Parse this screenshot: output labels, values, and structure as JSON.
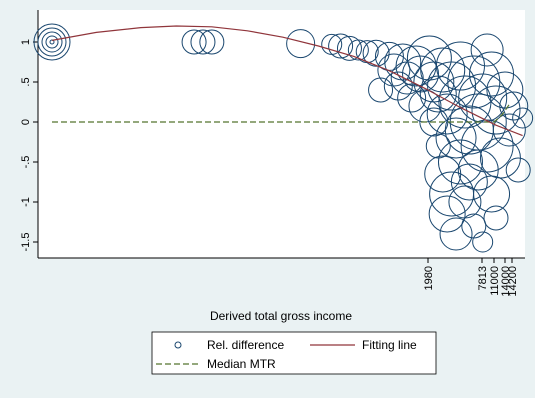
{
  "chart_data": {
    "type": "scatter",
    "xlabel": "Derived total gross income",
    "ylabel": "",
    "x_ticks": [
      "1980",
      "7813",
      "11000",
      "14000",
      "14200"
    ],
    "y_ticks": [
      "-1.5",
      "-1",
      "-.5",
      "0",
      ".5",
      "1"
    ],
    "y_tick_values": [
      -1.5,
      -1,
      -0.5,
      0,
      0.5,
      1
    ],
    "ylim": [
      -1.7,
      1.3
    ],
    "legend": {
      "placement": "bottom",
      "entries": [
        "Rel. difference",
        "Fitting line",
        "Median MTR"
      ]
    },
    "colors": {
      "bubble": "#1a476f",
      "fitting_line": "#90353b",
      "median_line": "#55752f",
      "plot_background": "#ffffff",
      "outer_background": "#eaf2f3"
    },
    "series": [
      {
        "name": "Rel. difference",
        "points": [
          {
            "x": 0.0,
            "y": 1.0,
            "s": 18
          },
          {
            "x": 0.0,
            "y": 1.0,
            "s": 14
          },
          {
            "x": 0.0,
            "y": 1.0,
            "s": 10
          },
          {
            "x": 0.0,
            "y": 1.0,
            "s": 6
          },
          {
            "x": 0.0,
            "y": 1.0,
            "s": 2
          },
          {
            "x": 0.32,
            "y": 1.0,
            "s": 12
          },
          {
            "x": 0.34,
            "y": 1.0,
            "s": 12
          },
          {
            "x": 0.36,
            "y": 1.0,
            "s": 12
          },
          {
            "x": 0.56,
            "y": 0.98,
            "s": 14
          },
          {
            "x": 0.63,
            "y": 0.97,
            "s": 10
          },
          {
            "x": 0.65,
            "y": 0.95,
            "s": 12
          },
          {
            "x": 0.67,
            "y": 0.92,
            "s": 12
          },
          {
            "x": 0.69,
            "y": 0.9,
            "s": 10
          },
          {
            "x": 0.71,
            "y": 0.88,
            "s": 11
          },
          {
            "x": 0.73,
            "y": 0.86,
            "s": 13
          },
          {
            "x": 0.74,
            "y": 0.4,
            "s": 12
          },
          {
            "x": 0.76,
            "y": 0.82,
            "s": 14
          },
          {
            "x": 0.77,
            "y": 0.65,
            "s": 16
          },
          {
            "x": 0.78,
            "y": 0.45,
            "s": 14
          },
          {
            "x": 0.79,
            "y": 0.75,
            "s": 18
          },
          {
            "x": 0.8,
            "y": 0.55,
            "s": 16
          },
          {
            "x": 0.81,
            "y": 0.3,
            "s": 14
          },
          {
            "x": 0.82,
            "y": 0.7,
            "s": 20
          },
          {
            "x": 0.83,
            "y": 0.6,
            "s": 18
          },
          {
            "x": 0.84,
            "y": 0.2,
            "s": 16
          },
          {
            "x": 0.85,
            "y": 0.8,
            "s": 22
          },
          {
            "x": 0.86,
            "y": 0.5,
            "s": 20
          },
          {
            "x": 0.86,
            "y": 0.0,
            "s": 14
          },
          {
            "x": 0.87,
            "y": 0.35,
            "s": 18
          },
          {
            "x": 0.87,
            "y": -0.3,
            "s": 12
          },
          {
            "x": 0.88,
            "y": 0.65,
            "s": 22
          },
          {
            "x": 0.88,
            "y": -0.65,
            "s": 18
          },
          {
            "x": 0.89,
            "y": 0.1,
            "s": 20
          },
          {
            "x": 0.89,
            "y": -1.15,
            "s": 18
          },
          {
            "x": 0.9,
            "y": 0.45,
            "s": 24
          },
          {
            "x": 0.9,
            "y": -0.9,
            "s": 22
          },
          {
            "x": 0.91,
            "y": -0.2,
            "s": 20
          },
          {
            "x": 0.91,
            "y": -1.4,
            "s": 16
          },
          {
            "x": 0.92,
            "y": 0.7,
            "s": 24
          },
          {
            "x": 0.92,
            "y": -0.5,
            "s": 22
          },
          {
            "x": 0.93,
            "y": 0.25,
            "s": 26
          },
          {
            "x": 0.93,
            "y": -1.0,
            "s": 16
          },
          {
            "x": 0.94,
            "y": -0.1,
            "s": 24
          },
          {
            "x": 0.94,
            "y": -0.75,
            "s": 18
          },
          {
            "x": 0.95,
            "y": 0.5,
            "s": 26
          },
          {
            "x": 0.95,
            "y": -1.3,
            "s": 12
          },
          {
            "x": 0.96,
            "y": 0.0,
            "s": 28
          },
          {
            "x": 0.96,
            "y": -0.6,
            "s": 20
          },
          {
            "x": 0.97,
            "y": 0.3,
            "s": 24
          },
          {
            "x": 0.97,
            "y": -1.5,
            "s": 10
          },
          {
            "x": 0.98,
            "y": -0.3,
            "s": 26
          },
          {
            "x": 0.98,
            "y": 0.9,
            "s": 16
          },
          {
            "x": 0.99,
            "y": 0.6,
            "s": 22
          },
          {
            "x": 0.99,
            "y": -0.9,
            "s": 18
          },
          {
            "x": 1.0,
            "y": 0.15,
            "s": 24
          },
          {
            "x": 1.0,
            "y": -1.2,
            "s": 12
          },
          {
            "x": 1.01,
            "y": -0.45,
            "s": 20
          },
          {
            "x": 1.02,
            "y": 0.4,
            "s": 18
          },
          {
            "x": 1.03,
            "y": -0.1,
            "s": 16
          },
          {
            "x": 1.04,
            "y": 0.2,
            "s": 14
          },
          {
            "x": 1.05,
            "y": -0.6,
            "s": 12
          },
          {
            "x": 1.06,
            "y": 0.05,
            "s": 10
          }
        ]
      },
      {
        "name": "Fitting line",
        "points": [
          {
            "x": 0.0,
            "y": 1.02
          },
          {
            "x": 0.1,
            "y": 1.12
          },
          {
            "x": 0.2,
            "y": 1.18
          },
          {
            "x": 0.28,
            "y": 1.2
          },
          {
            "x": 0.36,
            "y": 1.19
          },
          {
            "x": 0.44,
            "y": 1.14
          },
          {
            "x": 0.52,
            "y": 1.06
          },
          {
            "x": 0.6,
            "y": 0.95
          },
          {
            "x": 0.68,
            "y": 0.82
          },
          {
            "x": 0.76,
            "y": 0.64
          },
          {
            "x": 0.84,
            "y": 0.42
          },
          {
            "x": 0.92,
            "y": 0.18
          },
          {
            "x": 1.0,
            "y": -0.04
          },
          {
            "x": 1.06,
            "y": -0.17
          }
        ]
      },
      {
        "name": "Median MTR",
        "points": [
          {
            "x": 0.0,
            "y": 0.0
          },
          {
            "x": 0.996,
            "y": 0.0
          },
          {
            "x": 1.015,
            "y": 0.1
          },
          {
            "x": 1.03,
            "y": 0.22
          }
        ]
      }
    ]
  }
}
